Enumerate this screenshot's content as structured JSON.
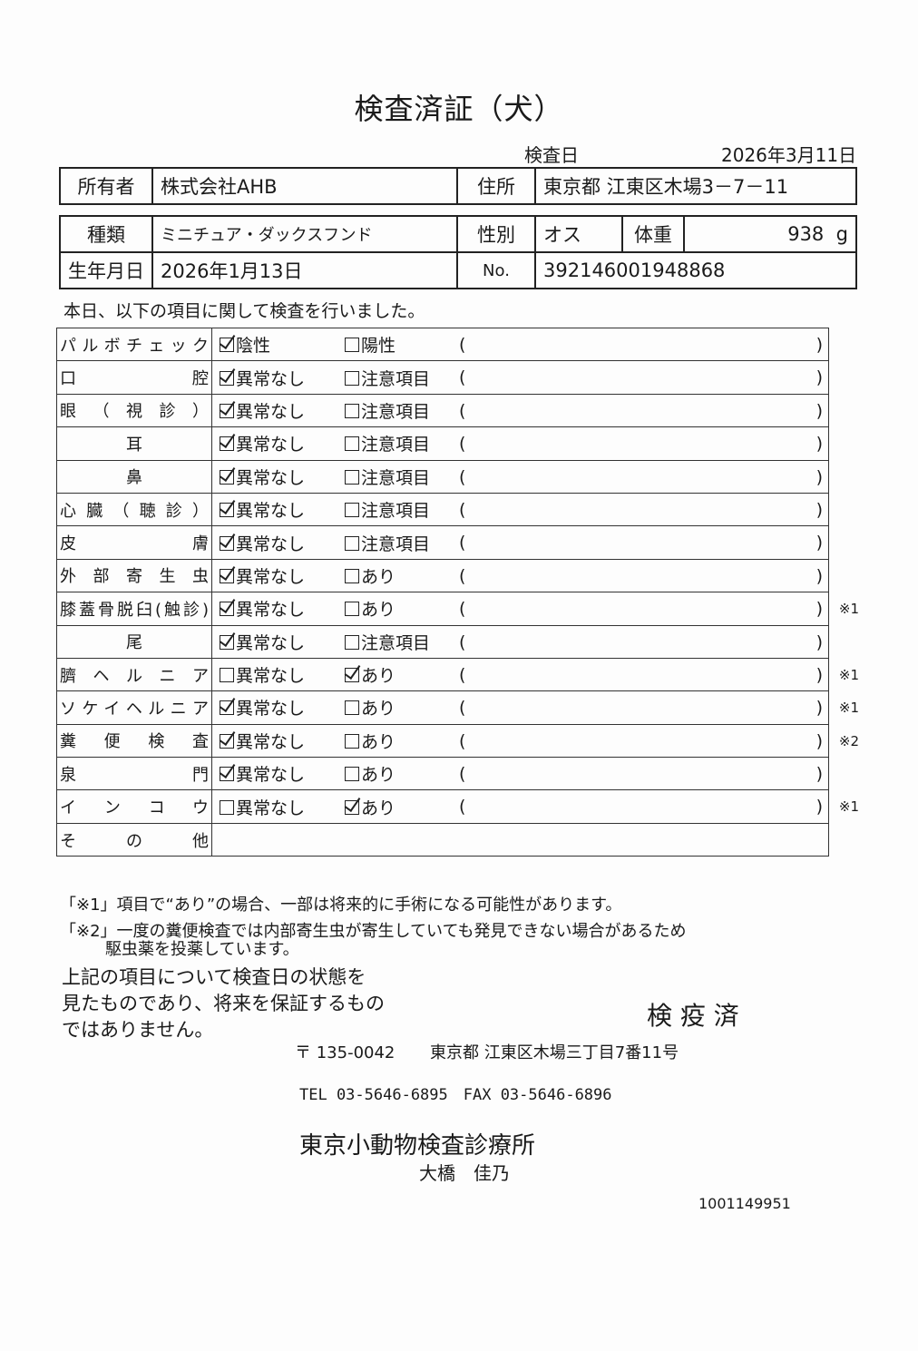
{
  "title": "検査済証（犬）",
  "exam_date": {
    "label": "検査日",
    "value": "2026年3月11日"
  },
  "owner": {
    "label": "所有者",
    "value": "株式会社AHB",
    "address_label": "住所",
    "address": "東京都 江東区木場3－7－11"
  },
  "pet": {
    "breed_label": "種類",
    "breed": "ミニチュア・ダックスフンド",
    "sex_label": "性別",
    "sex": "オス",
    "weight_label": "体重",
    "weight": "938",
    "weight_unit": "g",
    "birth_label": "生年月日",
    "birth": "2026年1月13日",
    "no_label": "No.",
    "no": "392146001948868"
  },
  "intro": "本日、以下の項目に関して検査を行いました。",
  "paren_open": "(",
  "paren_close": ")",
  "checks": [
    {
      "label": "パルボチェック",
      "opt1": "陰性",
      "opt1_checked": true,
      "opt2": "陽性",
      "opt2_checked": false,
      "note": ""
    },
    {
      "label": "口腔",
      "opt1": "異常なし",
      "opt1_checked": true,
      "opt2": "注意項目",
      "opt2_checked": false,
      "note": ""
    },
    {
      "label": "眼（視診）",
      "opt1": "異常なし",
      "opt1_checked": true,
      "opt2": "注意項目",
      "opt2_checked": false,
      "note": ""
    },
    {
      "label": "耳",
      "opt1": "異常なし",
      "opt1_checked": true,
      "opt2": "注意項目",
      "opt2_checked": false,
      "note": ""
    },
    {
      "label": "鼻",
      "opt1": "異常なし",
      "opt1_checked": true,
      "opt2": "注意項目",
      "opt2_checked": false,
      "note": ""
    },
    {
      "label": "心臓（聴診）",
      "opt1": "異常なし",
      "opt1_checked": true,
      "opt2": "注意項目",
      "opt2_checked": false,
      "note": ""
    },
    {
      "label": "皮膚",
      "opt1": "異常なし",
      "opt1_checked": true,
      "opt2": "注意項目",
      "opt2_checked": false,
      "note": ""
    },
    {
      "label": "外部寄生虫",
      "opt1": "異常なし",
      "opt1_checked": true,
      "opt2": "あり",
      "opt2_checked": false,
      "note": ""
    },
    {
      "label": "膝蓋骨脱臼(触診)",
      "opt1": "異常なし",
      "opt1_checked": true,
      "opt2": "あり",
      "opt2_checked": false,
      "note": "※1"
    },
    {
      "label": "尾",
      "opt1": "異常なし",
      "opt1_checked": true,
      "opt2": "注意項目",
      "opt2_checked": false,
      "note": ""
    },
    {
      "label": "臍ヘルニア",
      "opt1": "異常なし",
      "opt1_checked": false,
      "opt2": "あり",
      "opt2_checked": true,
      "note": "※1"
    },
    {
      "label": "ソケイヘルニア",
      "opt1": "異常なし",
      "opt1_checked": true,
      "opt2": "あり",
      "opt2_checked": false,
      "note": "※1"
    },
    {
      "label": "糞便検査",
      "opt1": "異常なし",
      "opt1_checked": true,
      "opt2": "あり",
      "opt2_checked": false,
      "note": "※2"
    },
    {
      "label": "泉門",
      "opt1": "異常なし",
      "opt1_checked": true,
      "opt2": "あり",
      "opt2_checked": false,
      "note": ""
    },
    {
      "label": "インコウ",
      "opt1": "異常なし",
      "opt1_checked": false,
      "opt2": "あり",
      "opt2_checked": true,
      "note": "※1"
    }
  ],
  "other_label": "その他",
  "footnote1": "「※1」項目で“あり”の場合、一部は将来的に手術になる可能性があります。",
  "footnote2a": "「※2」一度の糞便検査では内部寄生虫が寄生していても発見できない場合があるため",
  "footnote2b": "駆虫薬を投薬しています。",
  "disclaimer": [
    "上記の項目について検査日の状態を",
    "見たものであり、将来を保証するもの",
    "ではありません。"
  ],
  "stamp": "検 疫 済",
  "postal": "〒 135-0042",
  "address": "東京都 江東区木場三丁目7番11号",
  "contact": "TEL 03-5646-6895　FAX 03-5646-6896",
  "clinic": "東京小動物検査診療所",
  "vet": "大橋　佳乃",
  "doc_number": "1001149951"
}
